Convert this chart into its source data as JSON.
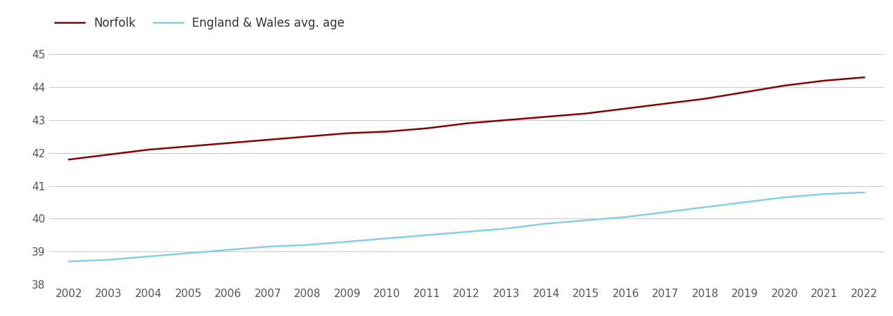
{
  "years": [
    2002,
    2003,
    2004,
    2005,
    2006,
    2007,
    2008,
    2009,
    2010,
    2011,
    2012,
    2013,
    2014,
    2015,
    2016,
    2017,
    2018,
    2019,
    2020,
    2021,
    2022
  ],
  "norfolk": [
    41.8,
    41.95,
    42.1,
    42.2,
    42.3,
    42.4,
    42.5,
    42.6,
    42.65,
    42.75,
    42.9,
    43.0,
    43.1,
    43.2,
    43.35,
    43.5,
    43.65,
    43.85,
    44.05,
    44.2,
    44.3
  ],
  "england_wales": [
    38.7,
    38.75,
    38.85,
    38.95,
    39.05,
    39.15,
    39.2,
    39.3,
    39.4,
    39.5,
    39.6,
    39.7,
    39.85,
    39.95,
    40.05,
    40.2,
    40.35,
    40.5,
    40.65,
    40.75,
    40.8
  ],
  "norfolk_color": "#8B0000",
  "england_wales_color": "#87CEEB",
  "norfolk_label": "Norfolk",
  "england_wales_label": "England & Wales avg. age",
  "ylim": [
    38,
    45.5
  ],
  "yticks": [
    38,
    39,
    40,
    41,
    42,
    43,
    44,
    45
  ],
  "background_color": "#ffffff",
  "grid_color": "#cccccc",
  "line_width": 1.8,
  "legend_fontsize": 12,
  "tick_fontsize": 11,
  "tick_color": "#555555"
}
